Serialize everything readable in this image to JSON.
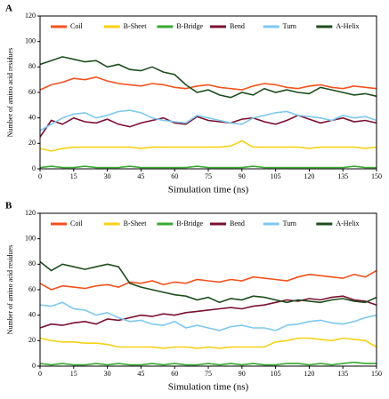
{
  "chart_data": [
    {
      "type": "line",
      "panel_label": "A",
      "xlabel": "Simulation time (ns)",
      "ylabel": "Number of amino acid residues",
      "xlim": [
        0,
        150
      ],
      "ylim": [
        0,
        120
      ],
      "xticks": [
        0,
        15,
        30,
        45,
        60,
        75,
        90,
        105,
        120,
        135,
        150
      ],
      "yticks": [
        0,
        20,
        40,
        60,
        80,
        100,
        120
      ],
      "legend": "top",
      "x": [
        0,
        5,
        10,
        15,
        20,
        25,
        30,
        35,
        40,
        45,
        50,
        55,
        60,
        65,
        70,
        75,
        80,
        85,
        90,
        95,
        100,
        105,
        110,
        115,
        120,
        125,
        130,
        135,
        140,
        145,
        150
      ],
      "series": [
        {
          "name": "Coil",
          "color": "#f4511e",
          "values": [
            62,
            66,
            68,
            71,
            70,
            72,
            69,
            67,
            66,
            65,
            67,
            66,
            64,
            63,
            65,
            66,
            64,
            63,
            62,
            65,
            67,
            66,
            64,
            63,
            65,
            66,
            64,
            63,
            65,
            64,
            63
          ]
        },
        {
          "name": "B-Sheet",
          "color": "#f7d117",
          "values": [
            16,
            14,
            16,
            17,
            17,
            17,
            17,
            17,
            17,
            16,
            17,
            17,
            17,
            17,
            17,
            17,
            17,
            18,
            22,
            17,
            17,
            17,
            17,
            17,
            16,
            17,
            17,
            17,
            17,
            16,
            17
          ]
        },
        {
          "name": "B-Bridge",
          "color": "#3aa832",
          "values": [
            1,
            2,
            1,
            1,
            2,
            1,
            1,
            1,
            2,
            1,
            1,
            1,
            1,
            1,
            2,
            1,
            1,
            1,
            1,
            2,
            1,
            1,
            1,
            1,
            1,
            1,
            1,
            1,
            2,
            1,
            1
          ]
        },
        {
          "name": "Bend",
          "color": "#7a1030",
          "values": [
            25,
            38,
            35,
            40,
            37,
            36,
            39,
            35,
            33,
            36,
            38,
            40,
            36,
            35,
            41,
            38,
            37,
            36,
            39,
            40,
            37,
            35,
            38,
            42,
            39,
            36,
            38,
            40,
            37,
            38,
            36
          ]
        },
        {
          "name": "Turn",
          "color": "#7ec8f0",
          "values": [
            30,
            35,
            40,
            43,
            44,
            40,
            42,
            45,
            46,
            44,
            40,
            38,
            37,
            36,
            42,
            40,
            38,
            36,
            35,
            40,
            42,
            44,
            45,
            42,
            41,
            40,
            38,
            42,
            40,
            41,
            38
          ]
        },
        {
          "name": "A-Helix",
          "color": "#1d4d1d",
          "values": [
            82,
            85,
            88,
            86,
            84,
            85,
            80,
            82,
            78,
            77,
            80,
            76,
            74,
            66,
            60,
            62,
            58,
            56,
            60,
            58,
            63,
            60,
            62,
            60,
            59,
            64,
            62,
            60,
            58,
            59,
            57
          ]
        }
      ]
    },
    {
      "type": "line",
      "panel_label": "B",
      "xlabel": "Simulation time (ns)",
      "ylabel": "Number of amino acid residues",
      "xlim": [
        0,
        150
      ],
      "ylim": [
        0,
        120
      ],
      "xticks": [
        0,
        15,
        30,
        45,
        60,
        75,
        90,
        105,
        120,
        135,
        150
      ],
      "yticks": [
        0,
        20,
        40,
        60,
        80,
        100,
        120
      ],
      "legend": "top",
      "x": [
        0,
        5,
        10,
        15,
        20,
        25,
        30,
        35,
        40,
        45,
        50,
        55,
        60,
        65,
        70,
        75,
        80,
        85,
        90,
        95,
        100,
        105,
        110,
        115,
        120,
        125,
        130,
        135,
        140,
        145,
        150
      ],
      "series": [
        {
          "name": "Coil",
          "color": "#f4511e",
          "values": [
            65,
            60,
            63,
            62,
            61,
            63,
            64,
            62,
            66,
            65,
            67,
            64,
            66,
            65,
            68,
            67,
            66,
            68,
            67,
            70,
            69,
            68,
            67,
            70,
            72,
            71,
            70,
            69,
            72,
            70,
            75
          ]
        },
        {
          "name": "B-Sheet",
          "color": "#f7d117",
          "values": [
            22,
            20,
            19,
            19,
            18,
            18,
            17,
            15,
            15,
            15,
            15,
            14,
            15,
            15,
            14,
            15,
            14,
            15,
            15,
            15,
            15,
            19,
            20,
            22,
            22,
            21,
            20,
            22,
            21,
            20,
            15
          ]
        },
        {
          "name": "B-Bridge",
          "color": "#3aa832",
          "values": [
            2,
            1,
            2,
            1,
            1,
            2,
            1,
            2,
            1,
            1,
            2,
            1,
            2,
            1,
            1,
            2,
            1,
            2,
            1,
            2,
            1,
            1,
            2,
            2,
            1,
            2,
            1,
            2,
            3,
            2,
            2
          ]
        },
        {
          "name": "Bend",
          "color": "#7a1030",
          "values": [
            30,
            33,
            32,
            34,
            35,
            33,
            37,
            36,
            38,
            40,
            39,
            41,
            40,
            42,
            43,
            44,
            45,
            46,
            45,
            47,
            48,
            50,
            52,
            51,
            53,
            52,
            54,
            55,
            52,
            51,
            48
          ]
        },
        {
          "name": "Turn",
          "color": "#7ec8f0",
          "values": [
            48,
            47,
            50,
            45,
            44,
            40,
            42,
            38,
            35,
            36,
            33,
            32,
            35,
            30,
            32,
            30,
            28,
            31,
            32,
            30,
            30,
            28,
            32,
            33,
            35,
            36,
            34,
            33,
            35,
            38,
            40
          ]
        },
        {
          "name": "A-Helix",
          "color": "#1d4d1d",
          "values": [
            82,
            75,
            80,
            78,
            76,
            78,
            80,
            78,
            65,
            62,
            60,
            58,
            56,
            55,
            52,
            54,
            50,
            53,
            52,
            55,
            54,
            52,
            50,
            52,
            51,
            50,
            52,
            53,
            51,
            50,
            54
          ]
        }
      ]
    }
  ]
}
